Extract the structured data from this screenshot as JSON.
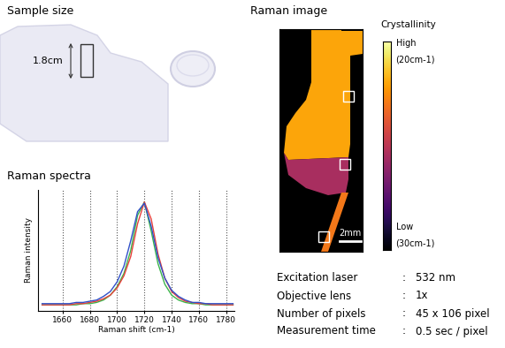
{
  "sample_size": {
    "title": "Sample size",
    "dimension": "1.8cm"
  },
  "raman_image": {
    "title": "Raman image",
    "scale_bar": "2mm",
    "regions": [
      {
        "value": 22
      },
      {
        "value": 25.5
      },
      {
        "value": 23
      }
    ],
    "colorbar": {
      "title": "Crystallinity",
      "range": [
        30,
        20
      ],
      "ticks": [
        {
          "value": 20,
          "label": "(20cm-1)",
          "level": "High"
        },
        {
          "value": 30,
          "label": "(30cm-1)",
          "level": "Low"
        }
      ]
    }
  },
  "chart_data": {
    "type": "line",
    "title": "Raman spectra",
    "xlabel": "Raman shift (cm-1)",
    "ylabel": "Raman intensity",
    "x": [
      1645,
      1650,
      1655,
      1660,
      1665,
      1670,
      1675,
      1680,
      1685,
      1690,
      1695,
      1700,
      1705,
      1710,
      1715,
      1720,
      1725,
      1730,
      1735,
      1740,
      1745,
      1750,
      1755,
      1760,
      1765,
      1770,
      1775,
      1780,
      1785
    ],
    "series": [
      {
        "color": "#3cb44b",
        "values": [
          0.05,
          0.05,
          0.05,
          0.05,
          0.05,
          0.05,
          0.06,
          0.06,
          0.07,
          0.09,
          0.13,
          0.2,
          0.31,
          0.5,
          0.79,
          0.9,
          0.66,
          0.39,
          0.22,
          0.13,
          0.09,
          0.07,
          0.06,
          0.06,
          0.05,
          0.05,
          0.05,
          0.05,
          0.05
        ]
      },
      {
        "color": "#e8413c",
        "values": [
          0.05,
          0.05,
          0.05,
          0.05,
          0.05,
          0.06,
          0.06,
          0.07,
          0.08,
          0.1,
          0.13,
          0.19,
          0.29,
          0.45,
          0.72,
          0.9,
          0.76,
          0.47,
          0.27,
          0.16,
          0.11,
          0.08,
          0.07,
          0.06,
          0.06,
          0.05,
          0.05,
          0.05,
          0.05
        ]
      },
      {
        "color": "#3050c8",
        "values": [
          0.06,
          0.06,
          0.06,
          0.06,
          0.06,
          0.07,
          0.07,
          0.08,
          0.09,
          0.12,
          0.16,
          0.24,
          0.37,
          0.58,
          0.82,
          0.89,
          0.7,
          0.44,
          0.27,
          0.17,
          0.12,
          0.09,
          0.07,
          0.07,
          0.06,
          0.06,
          0.06,
          0.06,
          0.06
        ]
      }
    ],
    "xlim": [
      1642,
      1786
    ],
    "xticks": [
      1660,
      1680,
      1700,
      1720,
      1740,
      1760,
      1780
    ],
    "ylim": [
      0,
      1
    ],
    "grid": true,
    "tick_labels": "x"
  },
  "specs": {
    "separator": ":",
    "rows": [
      [
        "Excitation laser",
        "532 nm"
      ],
      [
        "Objective lens",
        "1x"
      ],
      [
        "Number of pixels",
        "45 x 106 pixel"
      ],
      [
        "Measurement time",
        "0.5 sec / pixel"
      ]
    ]
  }
}
